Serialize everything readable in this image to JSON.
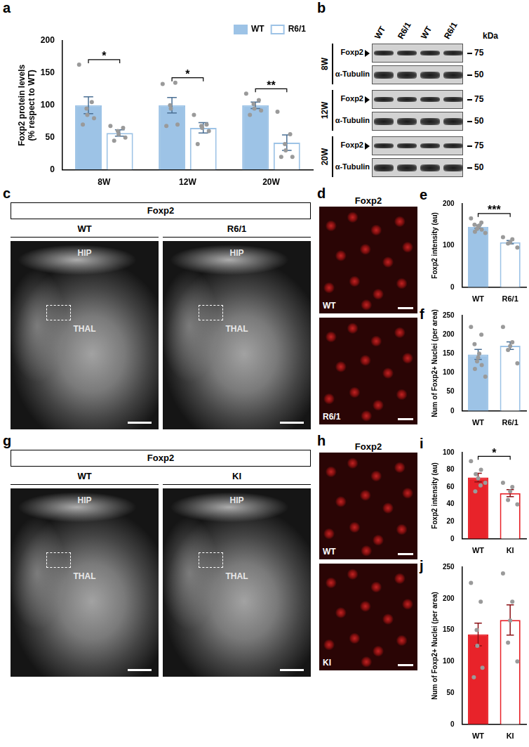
{
  "panel_labels": [
    "a",
    "b",
    "c",
    "d",
    "e",
    "f",
    "g",
    "h",
    "i",
    "j"
  ],
  "chart_data": [
    {
      "type": "bar",
      "y_label": [
        "Foxp2 protein levels",
        "(% respect to WT)"
      ],
      "categories": [
        "8W",
        "12W",
        "20W"
      ],
      "series": [
        {
          "name": "WT",
          "color": "#9dc3e6",
          "values": [
            100,
            100,
            100
          ],
          "errors": [
            13,
            12,
            5
          ],
          "points": [
            [
              163,
              105,
              95,
              85,
              80,
              70
            ],
            [
              133,
              135,
              100,
              95,
              70,
              68
            ],
            [
              118,
              108,
              102,
              95,
              92,
              85
            ]
          ]
        },
        {
          "name": "R6/1",
          "color": "#9dc3e6",
          "values": [
            57,
            65,
            42
          ],
          "errors": [
            5,
            8,
            12
          ],
          "points": [
            [
              68,
              65,
              60,
              55,
              50,
              45
            ],
            [
              85,
              70,
              68,
              65,
              60,
              40
            ],
            [
              90,
              55,
              40,
              30,
              20,
              20
            ]
          ]
        }
      ],
      "ylim": [
        0,
        200
      ],
      "yticks": [
        0,
        50,
        100,
        150,
        200
      ],
      "legend": "top-right",
      "annotations": [
        {
          "category": "8W",
          "text": "*"
        },
        {
          "category": "12W",
          "text": "*"
        },
        {
          "category": "20W",
          "text": "**"
        }
      ]
    },
    {
      "type": "bar",
      "y_label": "Foxp2 intensity (au)",
      "categories": [
        "WT",
        "R6/1"
      ],
      "values": [
        145,
        108
      ],
      "errors": [
        4,
        4
      ],
      "points": [
        [
          165,
          155,
          150,
          148,
          145,
          140,
          138,
          133,
          130
        ],
        [
          120,
          115,
          108,
          105,
          95
        ]
      ],
      "colors": [
        "#9dc3e6",
        "#9dc3e6"
      ],
      "ylim": [
        0,
        200
      ],
      "yticks": [
        0,
        100,
        200
      ],
      "annotations": [
        {
          "text": "***"
        }
      ]
    },
    {
      "type": "bar",
      "y_label": "Num of Foxp2+ Nuclei (per area)",
      "categories": [
        "WT",
        "R6/1"
      ],
      "values": [
        148,
        171
      ],
      "errors": [
        13,
        10
      ],
      "points": [
        [
          220,
          200,
          175,
          150,
          140,
          130,
          120,
          110,
          90
        ],
        [
          220,
          180,
          170,
          160,
          125
        ]
      ],
      "colors": [
        "#9dc3e6",
        "#9dc3e6"
      ],
      "ylim": [
        0,
        250
      ],
      "yticks": [
        0,
        50,
        100,
        150,
        200,
        250
      ]
    },
    {
      "type": "bar",
      "y_label": "Foxp2 intensity (au)",
      "categories": [
        "WT",
        "KI"
      ],
      "values": [
        71,
        53
      ],
      "errors": [
        5,
        4
      ],
      "points": [
        [
          90,
          80,
          75,
          70,
          62,
          55,
          65
        ],
        [
          65,
          60,
          55,
          45,
          40
        ]
      ],
      "colors": [
        "#e8232a",
        "#e8232a"
      ],
      "ylim": [
        0,
        100
      ],
      "yticks": [
        0,
        20,
        40,
        60,
        80,
        100
      ],
      "annotations": [
        {
          "text": "*"
        }
      ]
    },
    {
      "type": "bar",
      "y_label": "Num of Foxp2+ Nuclei (per area)",
      "categories": [
        "WT",
        "KI"
      ],
      "values": [
        143,
        166
      ],
      "errors": [
        18,
        24
      ],
      "points": [
        [
          225,
          195,
          150,
          125,
          90,
          75
        ],
        [
          240,
          195,
          165,
          130,
          100
        ]
      ],
      "colors": [
        "#e8232a",
        "#e8232a"
      ],
      "ylim": [
        0,
        250
      ],
      "yticks": [
        0,
        50,
        100,
        150,
        200,
        250
      ]
    }
  ],
  "blot": {
    "columns": [
      "WT",
      "R6/1",
      "WT",
      "R6/1"
    ],
    "unit": "kDa",
    "groups": [
      {
        "label": "8W",
        "rows": [
          {
            "name": "Foxp2",
            "marker": "triangle",
            "mw": 75
          },
          {
            "name": "α-Tubulin",
            "mw": 50
          }
        ]
      },
      {
        "label": "12W",
        "rows": [
          {
            "name": "Foxp2",
            "marker": "triangle",
            "mw": 75
          },
          {
            "name": "α-Tubulin",
            "mw": 50
          }
        ]
      },
      {
        "label": "20W",
        "rows": [
          {
            "name": "Foxp2",
            "marker": "triangle",
            "mw": 75
          },
          {
            "name": "α-Tubulin",
            "mw": 50
          }
        ]
      }
    ]
  },
  "images": [
    {
      "title": "Foxp2",
      "columns": [
        "WT",
        "R6/1"
      ],
      "regions": [
        "HIP",
        "THAL"
      ]
    },
    {
      "title": "Foxp2",
      "rows": [
        "WT",
        "R6/1"
      ]
    },
    {
      "title": "Foxp2",
      "columns": [
        "WT",
        "KI"
      ],
      "regions": [
        "HIP",
        "THAL"
      ]
    },
    {
      "title": "Foxp2",
      "rows": [
        "WT",
        "KI"
      ]
    }
  ]
}
